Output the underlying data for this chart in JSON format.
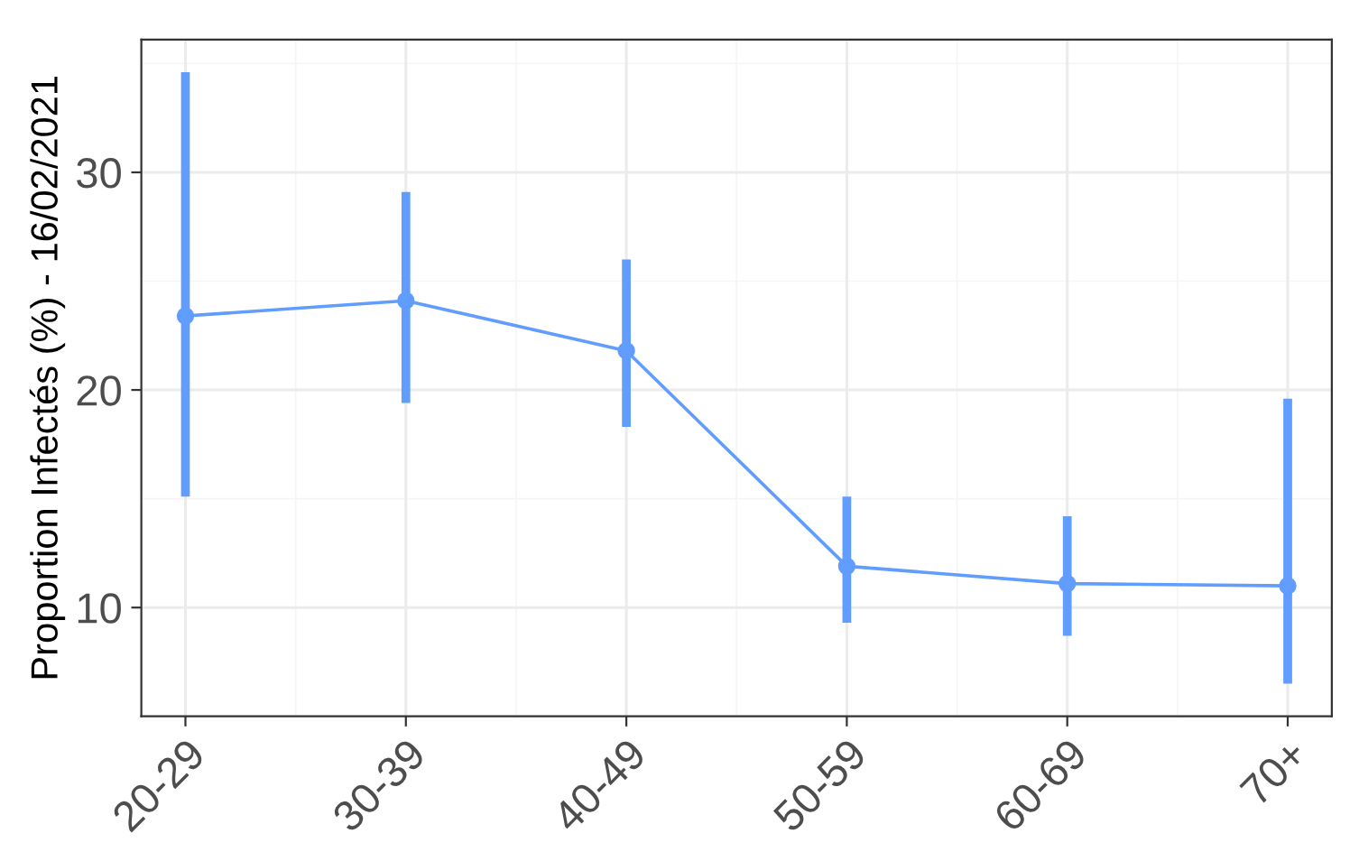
{
  "chart_data": {
    "type": "line",
    "ylabel": "Proportion Infectés (%) - 16/02/2021",
    "categories": [
      "20-29",
      "30-39",
      "40-49",
      "50-59",
      "60-69",
      "70+"
    ],
    "series": [
      {
        "color": "#619cff",
        "values": [
          23.4,
          24.1,
          21.8,
          11.9,
          11.1,
          11.0
        ],
        "errors": [
          [
            15.1,
            34.6
          ],
          [
            19.4,
            29.1
          ],
          [
            18.3,
            26.0
          ],
          [
            9.3,
            15.1
          ],
          [
            8.7,
            14.2
          ],
          [
            6.5,
            19.6
          ]
        ]
      }
    ],
    "ylim": [
      5,
      36.1
    ],
    "yticks": [
      10,
      20,
      30
    ],
    "grid": true,
    "marker": "circle",
    "line_style": "solid"
  }
}
